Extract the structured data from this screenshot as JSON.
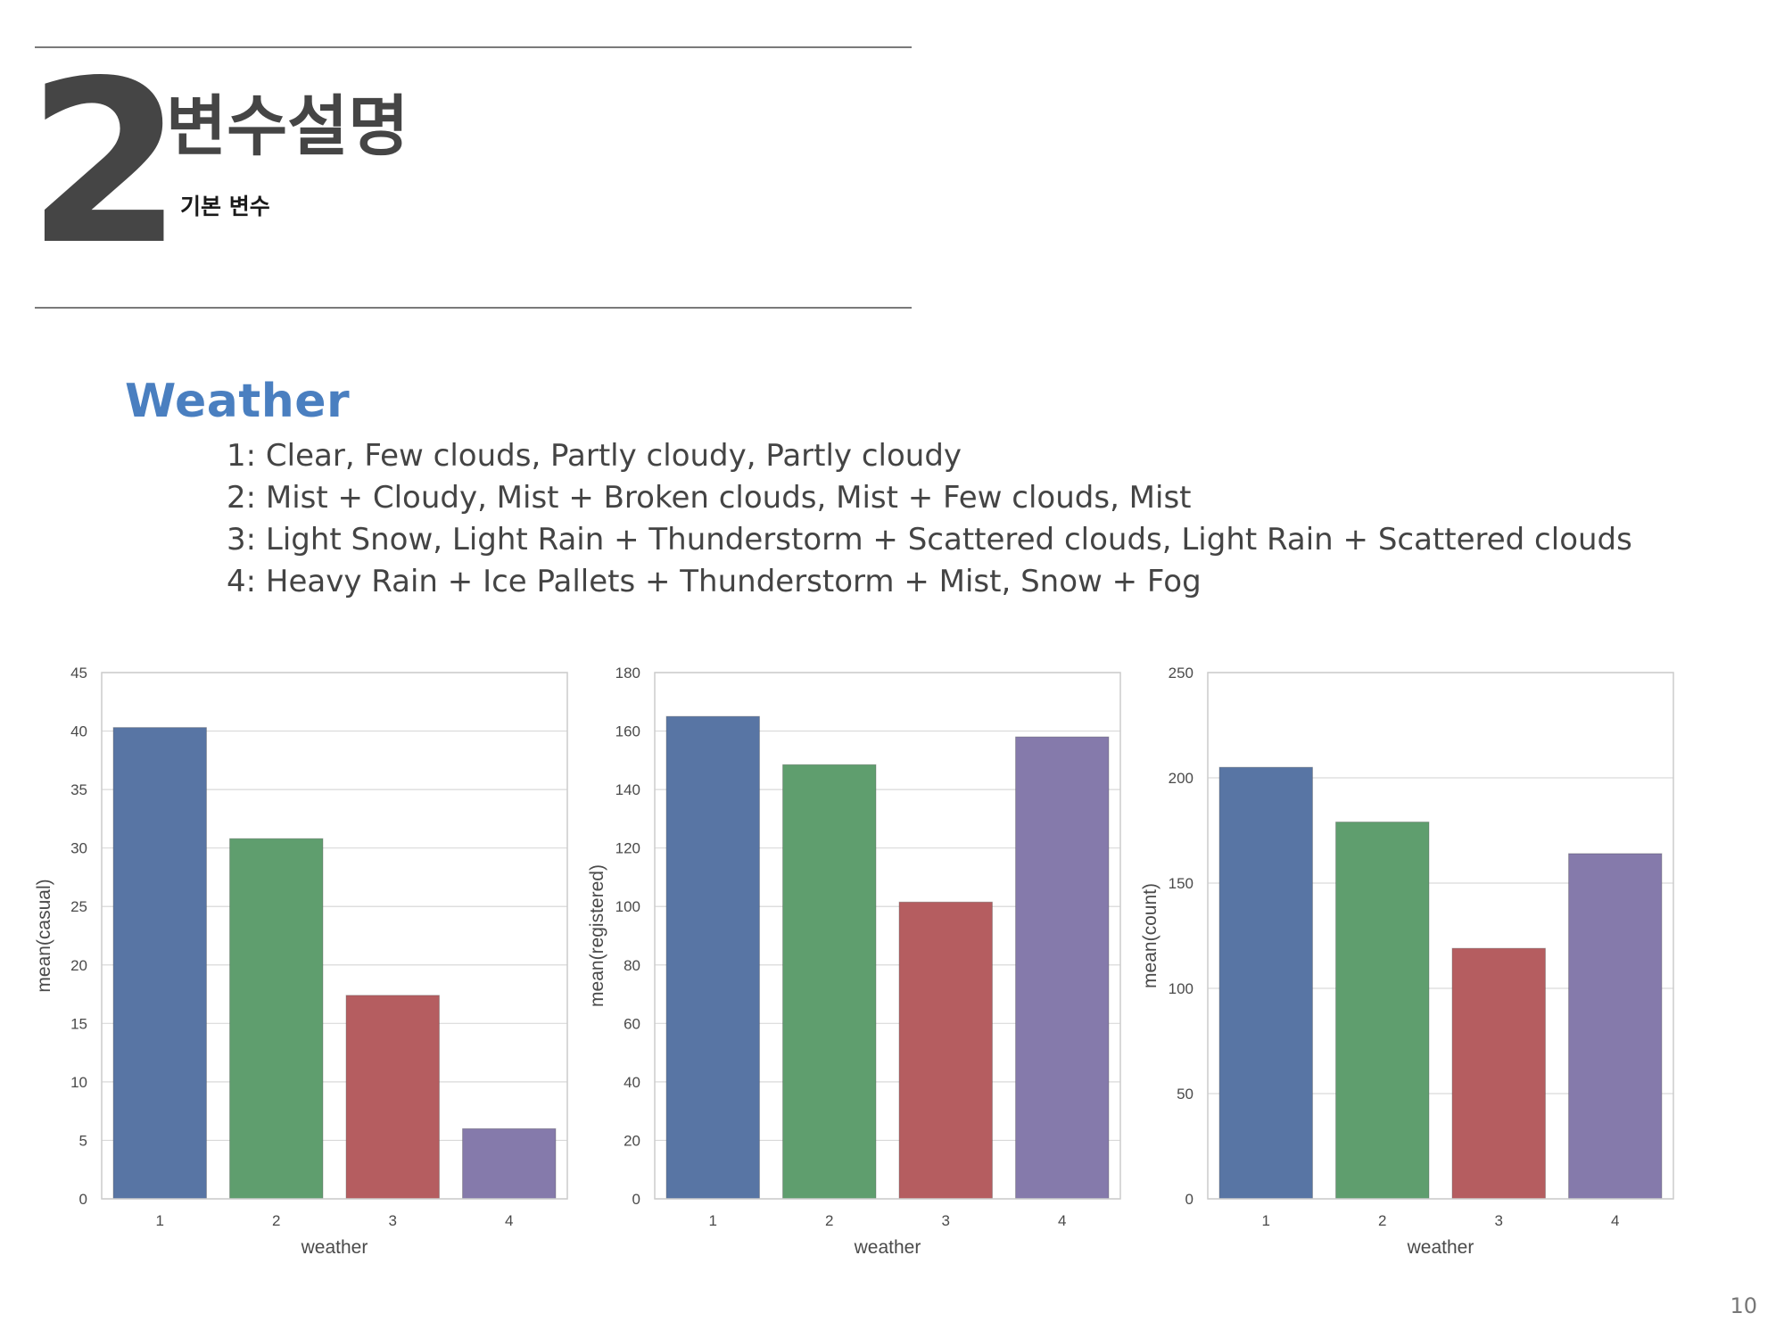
{
  "section": {
    "number": "2",
    "title": "변수설명",
    "subtitle": "기본 변수"
  },
  "heading": "Weather",
  "definitions": [
    "1: Clear, Few clouds, Partly cloudy, Partly cloudy",
    "2: Mist + Cloudy, Mist + Broken clouds, Mist + Few clouds, Mist",
    "3: Light Snow, Light Rain + Thunderstorm + Scattered clouds, Light Rain + Scattered clouds",
    "4: Heavy Rain + Ice Pallets + Thunderstorm + Mist, Snow + Fog"
  ],
  "colors": {
    "bars": [
      "#5875a4",
      "#5f9e6e",
      "#b55d60",
      "#857aab"
    ],
    "grid": "#d9d9d9",
    "frame": "#cccccc",
    "heading": "#4a7fc0"
  },
  "chart_data": [
    {
      "type": "bar",
      "categories": [
        "1",
        "2",
        "3",
        "4"
      ],
      "values": [
        40.3,
        30.8,
        17.4,
        6.0
      ],
      "xlabel": "weather",
      "ylabel": "mean(casual)",
      "ylim": [
        0,
        45
      ],
      "yticks": [
        "0",
        "5",
        "10",
        "15",
        "20",
        "25",
        "30",
        "35",
        "40",
        "45"
      ],
      "grid": true
    },
    {
      "type": "bar",
      "categories": [
        "1",
        "2",
        "3",
        "4"
      ],
      "values": [
        165,
        148.5,
        101.5,
        158
      ],
      "xlabel": "weather",
      "ylabel": "mean(registered)",
      "ylim": [
        0,
        180
      ],
      "yticks": [
        "0",
        "20",
        "40",
        "60",
        "80",
        "100",
        "120",
        "140",
        "160",
        "180"
      ],
      "grid": true
    },
    {
      "type": "bar",
      "categories": [
        "1",
        "2",
        "3",
        "4"
      ],
      "values": [
        205,
        179,
        119,
        164
      ],
      "xlabel": "weather",
      "ylabel": "mean(count)",
      "ylim": [
        0,
        250
      ],
      "yticks": [
        "0",
        "50",
        "100",
        "150",
        "200",
        "250"
      ],
      "grid": true
    }
  ],
  "page_number": "10"
}
